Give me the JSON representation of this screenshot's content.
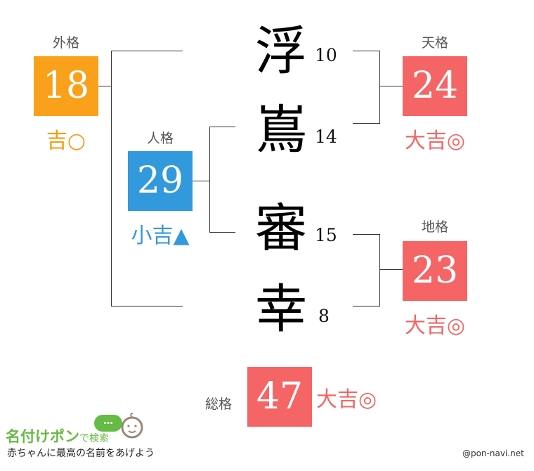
{
  "name": {
    "chars": [
      {
        "char": "浮",
        "strokes": "10"
      },
      {
        "char": "嶌",
        "strokes": "14"
      },
      {
        "char": "審",
        "strokes": "15"
      },
      {
        "char": "幸",
        "strokes": "8"
      }
    ]
  },
  "gaikaku": {
    "label": "外格",
    "value": "18",
    "fortune": "吉○",
    "color": "#f9a11b",
    "fortune_color": "#f39c12"
  },
  "jinkaku": {
    "label": "人格",
    "value": "29",
    "fortune": "小吉▲",
    "color": "#3399dd",
    "fortune_color": "#3399dd"
  },
  "tenkaku": {
    "label": "天格",
    "value": "24",
    "fortune": "大吉◎",
    "color": "#f56565",
    "fortune_color": "#f56565"
  },
  "chikaku": {
    "label": "地格",
    "value": "23",
    "fortune": "大吉◎",
    "color": "#f56565",
    "fortune_color": "#f56565"
  },
  "soukaku": {
    "label": "総格",
    "value": "47",
    "fortune": "大吉◎",
    "color": "#f56565",
    "fortune_color": "#f56565"
  },
  "logo": {
    "title": "名付けポン",
    "suffix": "で検索",
    "tagline": "赤ちゃんに最高の名前をあげよう",
    "bubble": "…"
  },
  "credit": "@pon-navi.net"
}
